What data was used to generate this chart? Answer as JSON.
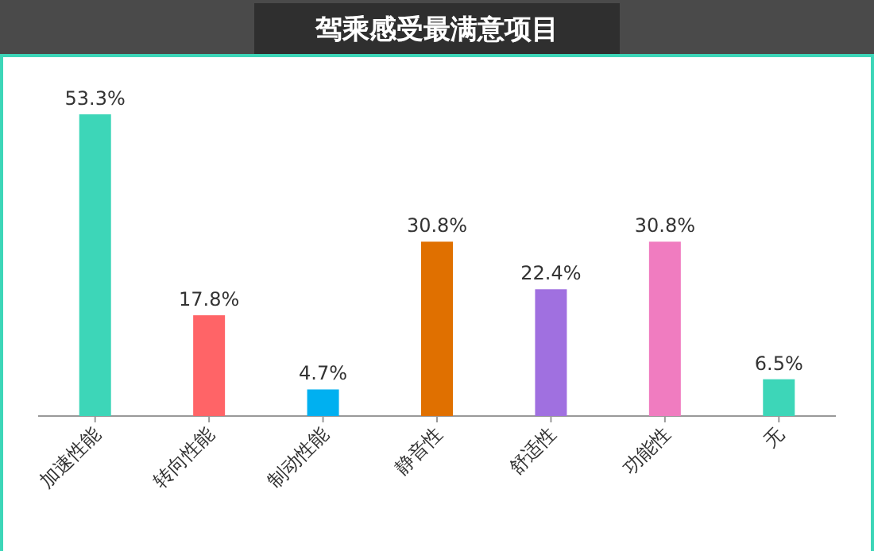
{
  "chart_data": {
    "type": "bar",
    "title": "驾乘感受最满意项目",
    "categories": [
      "加速性能",
      "转向性能",
      "制动性能",
      "静音性",
      "舒适性",
      "功能性",
      "无"
    ],
    "values": [
      53.3,
      17.8,
      4.7,
      30.8,
      22.4,
      30.8,
      6.5
    ],
    "value_labels": [
      "53.3%",
      "17.8%",
      "4.7%",
      "30.8%",
      "22.4%",
      "30.8%",
      "6.5%"
    ],
    "colors": [
      "#3dd6b8",
      "#ff6467",
      "#00b0f0",
      "#e07000",
      "#a070e0",
      "#f07cc0",
      "#3dd6b8"
    ]
  }
}
